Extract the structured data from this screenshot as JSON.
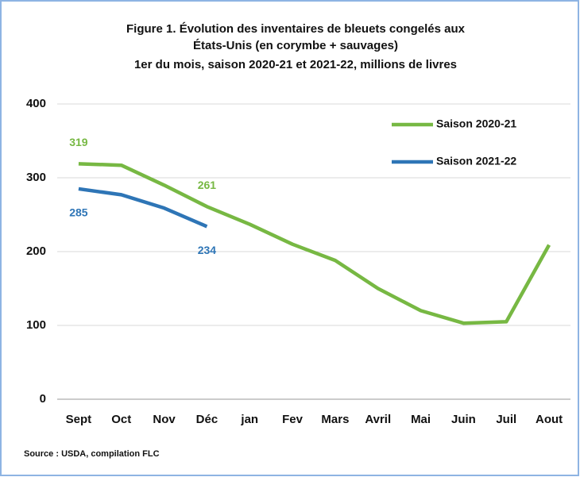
{
  "chart_data": {
    "type": "line",
    "title": [
      "Figure 1. Évolution des inventaires de bleuets congelés aux",
      "États-Unis (en corymbe + sauvages)",
      "1er du mois, saison 2020-21 et 2021-22, millions de livres"
    ],
    "categories": [
      "Sept",
      "Oct",
      "Nov",
      "Déc",
      "jan",
      "Fev",
      "Mars",
      "Avril",
      "Mai",
      "Juin",
      "Juil",
      "Aout"
    ],
    "series": [
      {
        "name": "Saison 2020-21",
        "color": "#77b843",
        "values": [
          319,
          317,
          290,
          261,
          237,
          210,
          188,
          150,
          120,
          103,
          105,
          209
        ],
        "value_labels": [
          "319",
          null,
          null,
          "261",
          null,
          null,
          null,
          null,
          null,
          null,
          null,
          null
        ]
      },
      {
        "name": "Saison 2021-22",
        "color": "#2e75b6",
        "values": [
          285,
          277,
          259,
          234,
          null,
          null,
          null,
          null,
          null,
          null,
          null,
          null
        ],
        "value_labels": [
          "285",
          null,
          null,
          "234",
          null,
          null,
          null,
          null,
          null,
          null,
          null,
          null
        ]
      }
    ],
    "ylim": [
      0,
      400
    ],
    "yticks": [
      0,
      100,
      200,
      300,
      400
    ],
    "grid": true,
    "legend": "top-right",
    "source": "Source : USDA, compilation FLC"
  }
}
